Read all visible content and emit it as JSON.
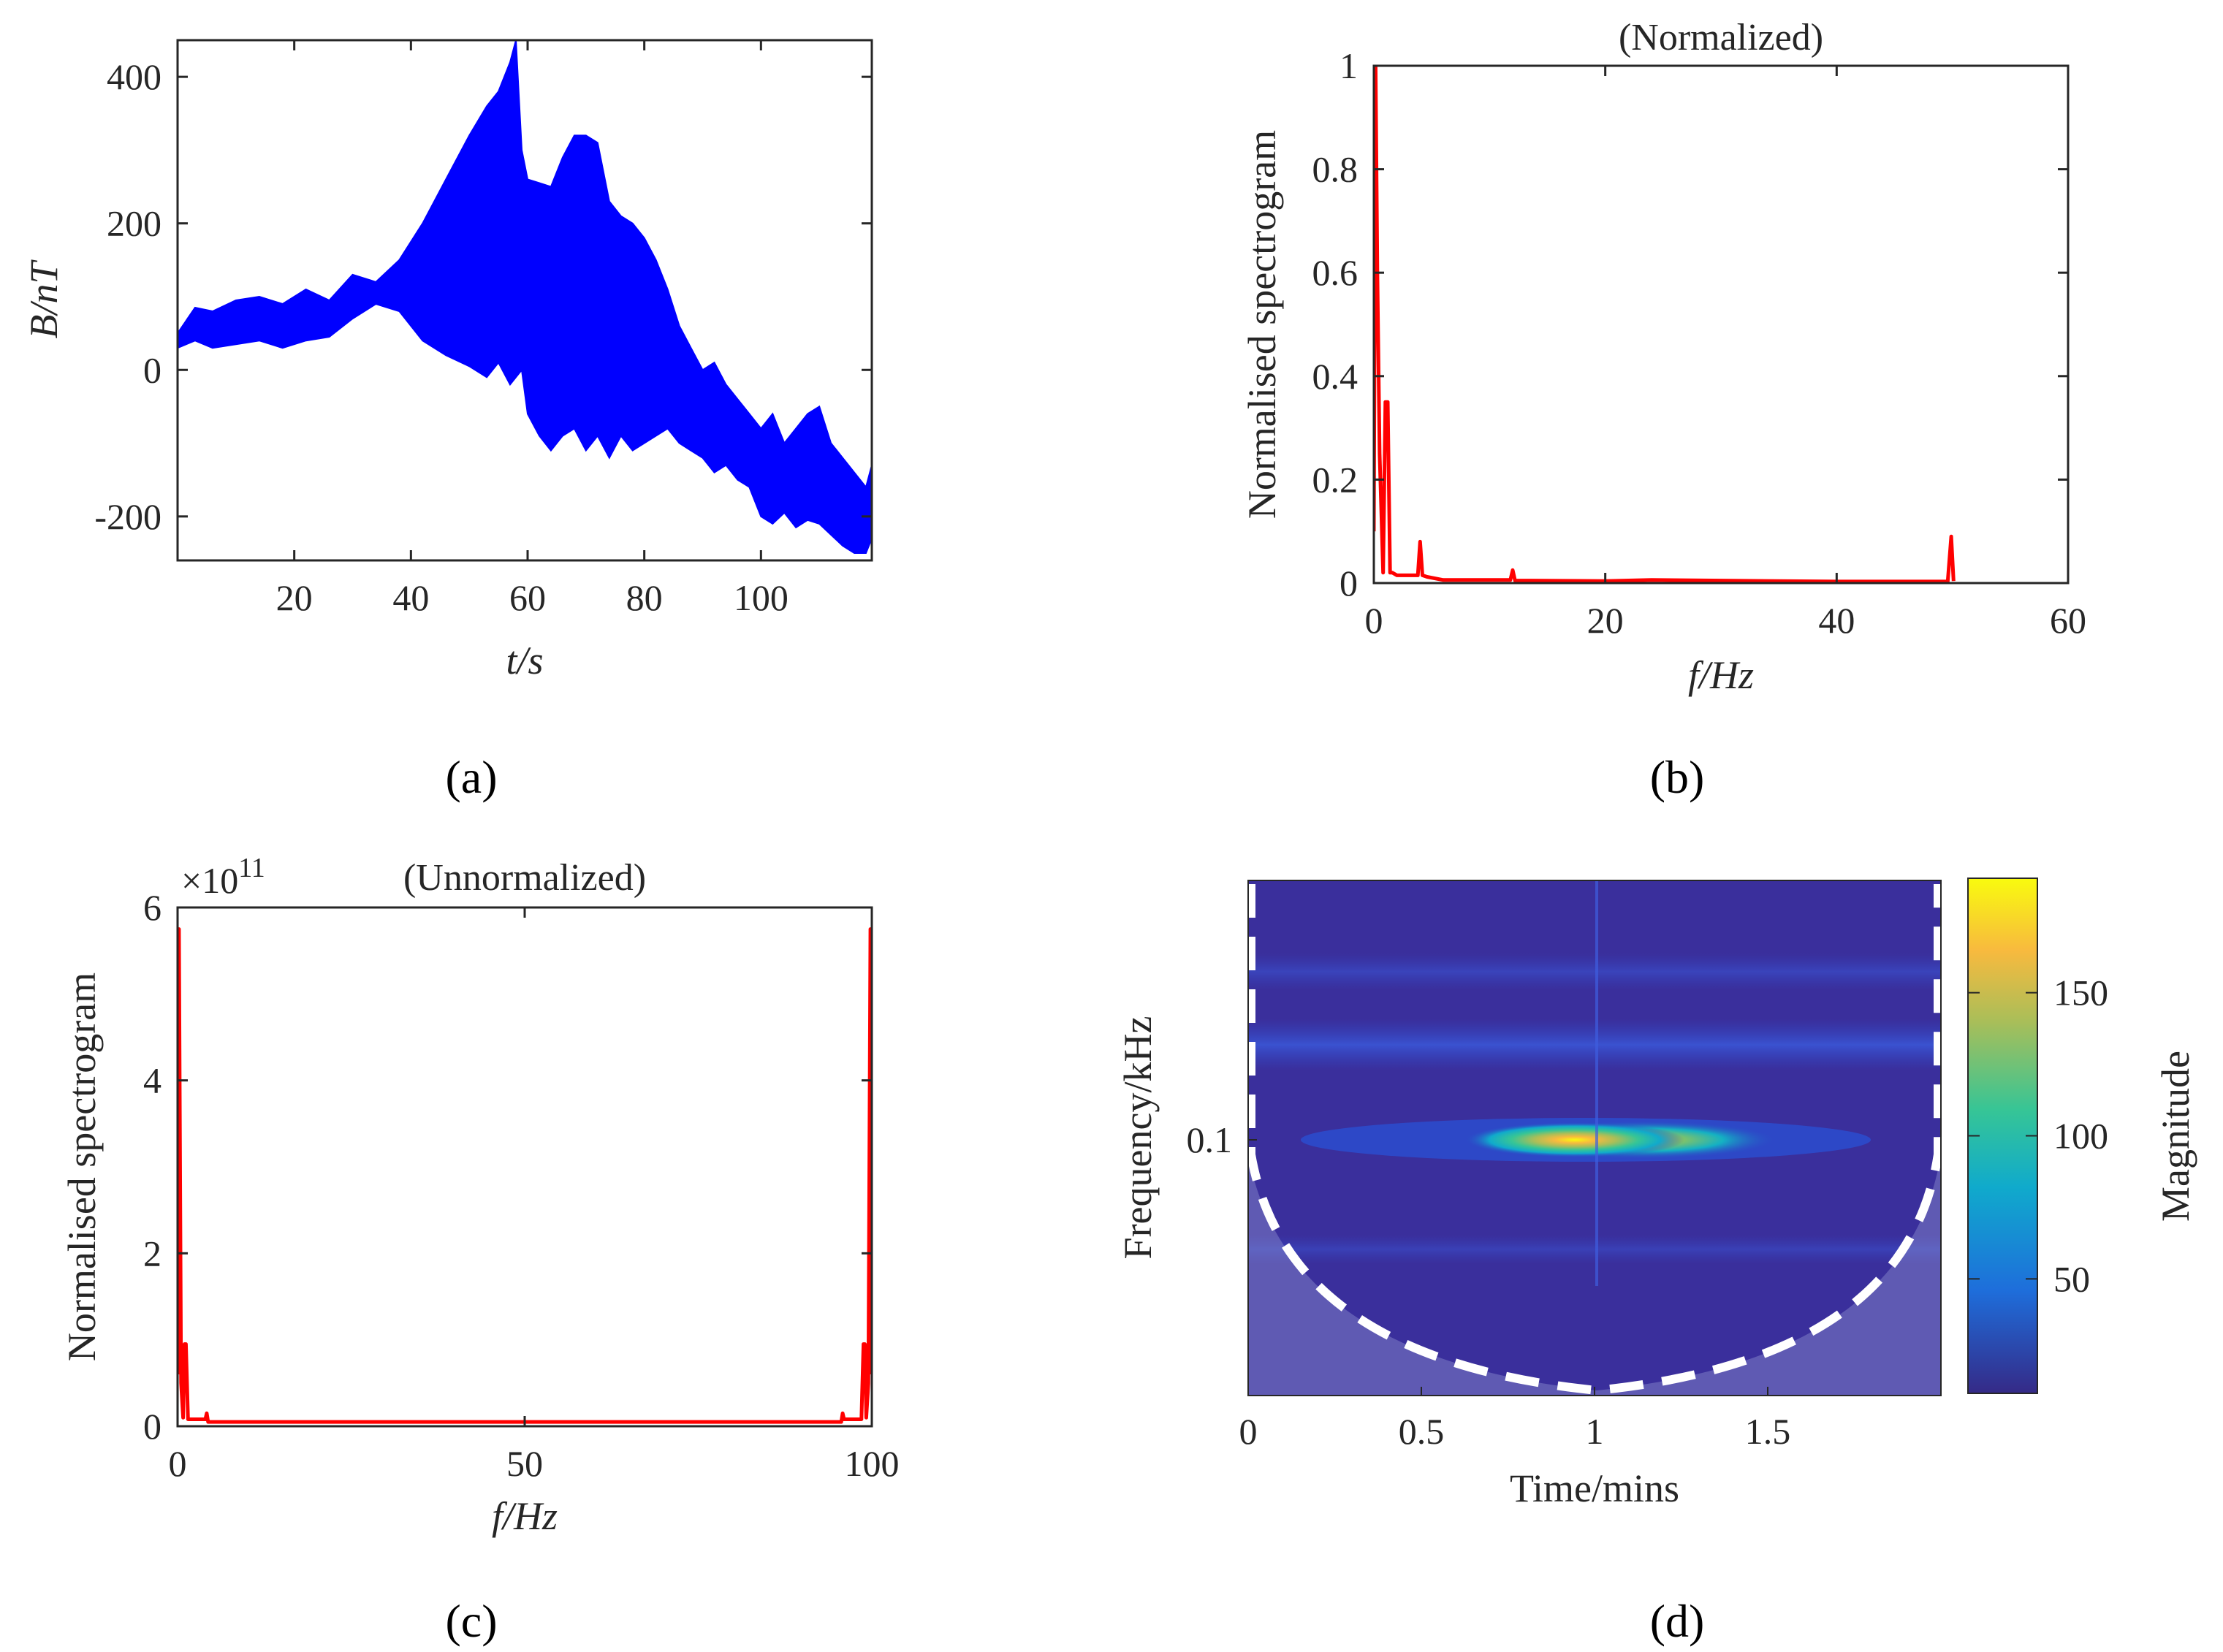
{
  "figure": {
    "panels": [
      "(a)",
      "(b)",
      "(c)",
      "(d)"
    ]
  },
  "chart_data": [
    {
      "id": "a",
      "type": "line",
      "label": "(a)",
      "title": "",
      "xlabel": "t/s",
      "ylabel": "B/nT",
      "xlim": [
        0,
        119
      ],
      "ylim": [
        -260,
        450
      ],
      "xticks": [
        20,
        40,
        60,
        80,
        100
      ],
      "yticks": [
        -200,
        0,
        200,
        400
      ],
      "color": "#0000ff",
      "series": [
        {
          "name": "upper envelope",
          "x": [
            0,
            3,
            6,
            10,
            14,
            18,
            22,
            26,
            30,
            34,
            38,
            42,
            46,
            50,
            53,
            55,
            57,
            58,
            59,
            60,
            62,
            64,
            66,
            68,
            70,
            72,
            74,
            76,
            78,
            80,
            82,
            84,
            86,
            88,
            90,
            92,
            94,
            96,
            98,
            100,
            102,
            104,
            106,
            108,
            110,
            112,
            114,
            116,
            118,
            119
          ],
          "values": [
            50,
            85,
            80,
            95,
            100,
            90,
            110,
            95,
            130,
            120,
            150,
            200,
            260,
            320,
            360,
            380,
            420,
            450,
            300,
            260,
            255,
            250,
            290,
            320,
            320,
            310,
            230,
            210,
            200,
            180,
            150,
            110,
            60,
            30,
            0,
            10,
            -20,
            -40,
            -60,
            -80,
            -60,
            -100,
            -80,
            -60,
            -50,
            -100,
            -120,
            -140,
            -160,
            -130
          ]
        },
        {
          "name": "lower envelope",
          "x": [
            0,
            3,
            6,
            10,
            14,
            18,
            22,
            26,
            30,
            34,
            38,
            42,
            46,
            50,
            53,
            55,
            57,
            58,
            59,
            60,
            62,
            64,
            66,
            68,
            70,
            72,
            74,
            76,
            78,
            80,
            82,
            84,
            86,
            88,
            90,
            92,
            94,
            96,
            98,
            100,
            102,
            104,
            106,
            108,
            110,
            112,
            114,
            116,
            118,
            119
          ],
          "values": [
            30,
            40,
            30,
            35,
            40,
            30,
            40,
            45,
            70,
            90,
            80,
            40,
            20,
            5,
            -10,
            10,
            -20,
            -10,
            0,
            -60,
            -90,
            -110,
            -90,
            -80,
            -110,
            -90,
            -120,
            -90,
            -110,
            -100,
            -90,
            -80,
            -100,
            -110,
            -120,
            -140,
            -130,
            -150,
            -160,
            -200,
            -210,
            -195,
            -215,
            -205,
            -210,
            -225,
            -240,
            -250,
            -250,
            -230
          ]
        }
      ]
    },
    {
      "id": "b",
      "type": "line",
      "label": "(b)",
      "title": "(Normalized)",
      "xlabel": "f/Hz",
      "ylabel": "Normalised spectrogram",
      "xlim": [
        0,
        60
      ],
      "ylim": [
        0,
        1
      ],
      "xticks": [
        0,
        20,
        40,
        60
      ],
      "yticks": [
        0,
        0.2,
        0.4,
        0.6,
        0.8,
        1
      ],
      "ytick_labels": [
        "0",
        "0.2",
        "0.4",
        "0.6",
        "0.8",
        "1"
      ],
      "color": "#ff0000",
      "x": [
        0,
        0.15,
        0.3,
        0.5,
        0.8,
        1,
        1.2,
        1.4,
        1.6,
        2,
        3.8,
        4,
        4.2,
        4.6,
        6,
        11.8,
        12,
        12.2,
        20,
        24,
        40,
        49.6,
        49.9,
        50.1
      ],
      "values": [
        0.1,
        1.0,
        0.6,
        0.25,
        0.02,
        0.35,
        0.35,
        0.02,
        0.02,
        0.015,
        0.015,
        0.08,
        0.015,
        0.012,
        0.006,
        0.006,
        0.025,
        0.005,
        0.004,
        0.006,
        0.003,
        0.003,
        0.09,
        0.004
      ]
    },
    {
      "id": "c",
      "type": "line",
      "label": "(c)",
      "title": "(Unnormalized)",
      "xlabel": "f/Hz",
      "ylabel": "Normalised spectrogram",
      "multiplier": "×10",
      "multiplier_exp": "11",
      "xlim": [
        0,
        100
      ],
      "ylim": [
        0,
        6
      ],
      "xticks": [
        0,
        50,
        100
      ],
      "yticks": [
        0,
        2,
        4,
        6
      ],
      "color": "#ff0000",
      "x": [
        0,
        0.2,
        0.5,
        0.8,
        1,
        1.2,
        1.5,
        4,
        4.2,
        4.4,
        50,
        95.6,
        95.8,
        96,
        98.5,
        98.8,
        99,
        99.2,
        99.5,
        99.8,
        100
      ],
      "values": [
        0.6,
        5.75,
        0.5,
        0.1,
        0.95,
        0.95,
        0.08,
        0.08,
        0.15,
        0.05,
        0.05,
        0.05,
        0.15,
        0.08,
        0.08,
        0.95,
        0.95,
        0.1,
        0.5,
        5.75,
        0.6
      ]
    },
    {
      "id": "d",
      "type": "heatmap",
      "label": "(d)",
      "title": "",
      "xlabel": "Time/mins",
      "ylabel": "Frequency/kHz",
      "xlim": [
        0,
        2
      ],
      "xticks": [
        0,
        0.5,
        1,
        1.5
      ],
      "yticks": [
        0.1
      ],
      "colorbar_label": "Magnitude",
      "colorbar_ticks": [
        50,
        100,
        150
      ],
      "colorbar_range": [
        10,
        190
      ],
      "colors": [
        "#352a87",
        "#1e6edb",
        "#10aacc",
        "#36c596",
        "#a8be59",
        "#f8ba3e",
        "#f9fb0e"
      ],
      "features": {
        "peak_time_mins": 1.0,
        "peak_frequency_kHz": 0.1,
        "peak_magnitude": 190,
        "cone_of_influence": "dashed"
      }
    }
  ]
}
